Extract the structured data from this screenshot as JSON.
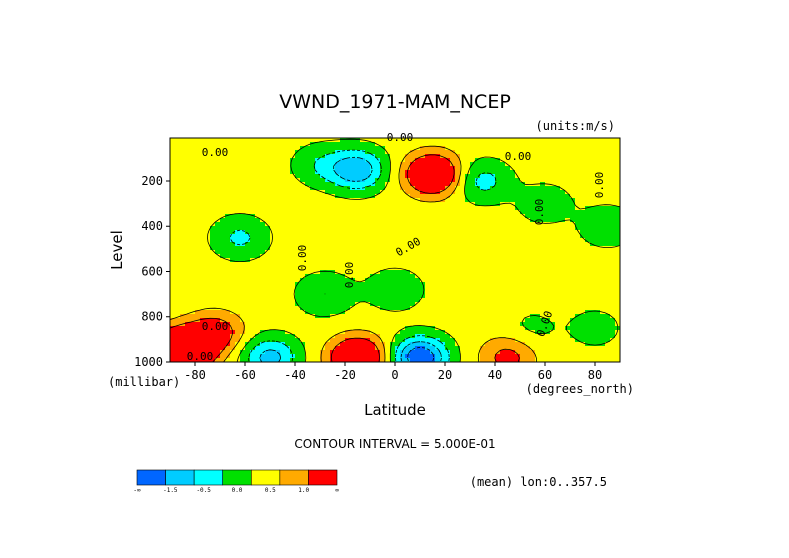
{
  "chart_data": {
    "type": "heatmap",
    "title": "VWND_1971-MAM_NCEP",
    "units_label": "(units:m/s)",
    "xlabel": "Latitude",
    "x_units_label": "(degrees_north)",
    "ylabel": "Level",
    "y_units_label": "(millibar)",
    "xlim": [
      -90,
      90
    ],
    "ylim": [
      1000,
      10
    ],
    "x_ticks": [
      -80,
      -60,
      -40,
      -20,
      0,
      20,
      40,
      60,
      80
    ],
    "y_ticks": [
      200,
      400,
      600,
      800,
      1000
    ],
    "contour_interval_label": "CONTOUR INTERVAL = 5.000E-01",
    "subset_label": "(mean) lon:0..357.5",
    "contour_labels": [
      "0.00",
      "0.00",
      "0.00",
      "0.00",
      "0.00",
      "0.00",
      "0.00",
      "0.00",
      "0.00",
      "0.00",
      "0.00"
    ],
    "colorbar": {
      "bins": [
        {
          "color": "#0066ff"
        },
        {
          "color": "#00ccff"
        },
        {
          "color": "#00ffff"
        },
        {
          "color": "#00e000"
        },
        {
          "color": "#ffff00"
        },
        {
          "color": "#ffaa00"
        },
        {
          "color": "#ff0000"
        }
      ],
      "tick_labels": [
        "-∞",
        "-1.5",
        "-0.5",
        "0.0",
        "0.5",
        "1.0",
        "∞"
      ]
    },
    "field": {
      "base_value": 0.2,
      "features": [
        {
          "lat": -62,
          "p": 450,
          "value": -0.8
        },
        {
          "lat": -30,
          "p": 130,
          "value": -0.6
        },
        {
          "lat": -15,
          "p": 150,
          "value": -1.6
        },
        {
          "lat": 15,
          "p": 170,
          "value": 2.0
        },
        {
          "lat": 35,
          "p": 200,
          "value": -0.9
        },
        {
          "lat": 60,
          "p": 300,
          "value": -0.5
        },
        {
          "lat": 85,
          "p": 400,
          "value": -0.6
        },
        {
          "lat": -85,
          "p": 950,
          "value": 3.0
        },
        {
          "lat": -72,
          "p": 870,
          "value": 1.2
        },
        {
          "lat": -50,
          "p": 980,
          "value": -1.4
        },
        {
          "lat": -15,
          "p": 980,
          "value": 2.0
        },
        {
          "lat": 10,
          "p": 980,
          "value": -2.2
        },
        {
          "lat": 45,
          "p": 980,
          "value": 1.0
        },
        {
          "lat": 0,
          "p": 680,
          "value": -0.6
        },
        {
          "lat": -28,
          "p": 700,
          "value": -0.7
        },
        {
          "lat": 55,
          "p": 850,
          "value": -0.3
        },
        {
          "lat": 80,
          "p": 850,
          "value": -0.4
        }
      ]
    }
  }
}
